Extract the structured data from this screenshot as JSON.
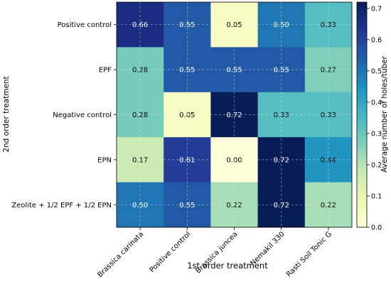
{
  "chart_data": {
    "type": "heatmap",
    "title": "",
    "xlabel": "1st order treatment",
    "ylabel": "2nd order treatment",
    "x_categories": [
      "Brassica carinata",
      "Positive control",
      "Brassica juncea",
      "Nemakil 330",
      "Rasti Soil Tonic G"
    ],
    "y_categories": [
      "Positive control",
      "EPF",
      "Negative control",
      "EPN",
      "Zeolite + 1/2 EPF + 1/2 EPN"
    ],
    "values": [
      [
        "0.66",
        "0.55",
        "0.05",
        "0.50",
        "0.33"
      ],
      [
        "0.28",
        "0.55",
        "0.55",
        "0.55",
        "0.27"
      ],
      [
        "0.28",
        "0.05",
        "0.72",
        "0.33",
        "0.33"
      ],
      [
        "0.17",
        "0.61",
        "0.00",
        "0.72",
        "0.44"
      ],
      [
        "0.50",
        "0.55",
        "0.22",
        "0.72",
        "0.22"
      ]
    ],
    "colorbar": {
      "label": "Average number of holes/tuber",
      "min": 0,
      "max": 0.72,
      "ticks": [
        "0.0",
        "0.1",
        "0.2",
        "0.3",
        "0.4",
        "0.5",
        "0.6",
        "0.7"
      ],
      "colormap": "YlGnBu"
    },
    "grid": true
  }
}
